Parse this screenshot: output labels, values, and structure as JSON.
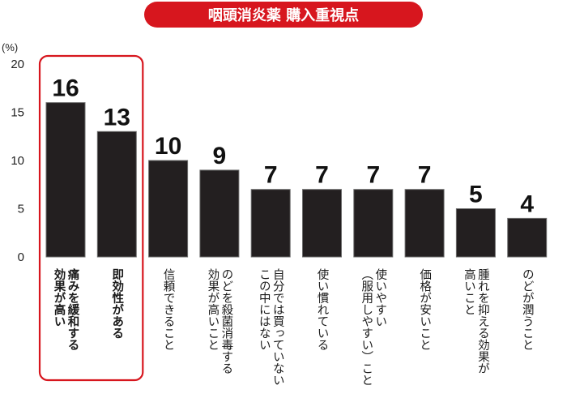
{
  "title": "咽頭消炎薬 購入重視点",
  "chart_data": {
    "type": "bar",
    "unit_label": "(%)",
    "ylim": [
      0,
      20
    ],
    "yticks": [
      "0",
      "5",
      "10",
      "15",
      "20"
    ],
    "categories": [
      [
        "痛みを緩和する",
        "効果が高い"
      ],
      [
        "即効性がある"
      ],
      [
        "信頼できること"
      ],
      [
        "のどを殺菌消毒する",
        "効果が高いこと"
      ],
      [
        "自分では買っていない",
        "この中にはない"
      ],
      [
        "使い慣れている"
      ],
      [
        "使いやすい",
        "（服用しやすい）こと"
      ],
      [
        "価格が安いこと"
      ],
      [
        "腫れを抑える効果が",
        "高いこと"
      ],
      [
        "のどが潤うこと"
      ]
    ],
    "values": [
      16,
      13,
      10,
      9,
      7,
      7,
      7,
      7,
      5,
      4
    ],
    "value_labels": [
      "16",
      "13",
      "10",
      "9",
      "7",
      "7",
      "7",
      "7",
      "5",
      "4"
    ],
    "highlighted": [
      0,
      1
    ],
    "grid": false
  },
  "colors": {
    "bar": "#231f20",
    "highlight": "#d7161e",
    "title_bg": "#d7161e",
    "text": "#1a1a1a"
  }
}
